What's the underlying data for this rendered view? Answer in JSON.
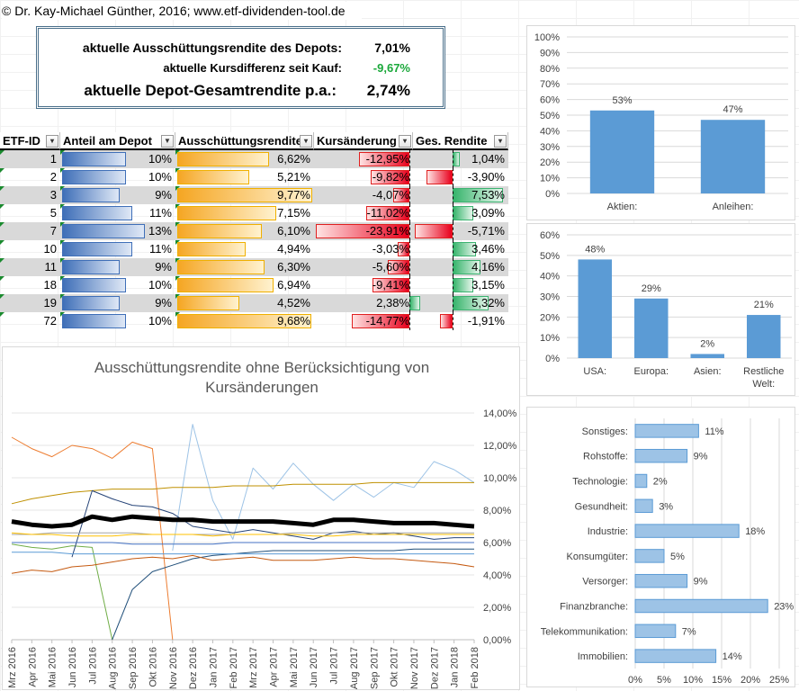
{
  "copyright": "© Dr. Kay-Michael Günther, 2016; www.etf-dividenden-tool.de",
  "summary": {
    "row1_label": "aktuelle Ausschüttungsrendite des Depots:",
    "row1_value": "7,01%",
    "row2_label": "aktuelle Kursdifferenz seit Kauf:",
    "row2_value": "-9,67%",
    "row3_label": "aktuelle Depot-Gesamtrendite p.a.:",
    "row3_value": "2,74%",
    "negative_color": "#1aa83a"
  },
  "table": {
    "headers": [
      "ETF-ID",
      "Anteil am Depot",
      "Ausschüttungsrendite",
      "Kursänderung",
      "Ges. Rendite"
    ],
    "rows": [
      {
        "id": "1",
        "anteil": "10%",
        "anteil_v": 10,
        "aus": "6,62%",
        "aus_v": 6.62,
        "kurs": "-12,95%",
        "kurs_v": -12.95,
        "ges": "1,04%",
        "ges_v": 1.04
      },
      {
        "id": "2",
        "anteil": "10%",
        "anteil_v": 10,
        "aus": "5,21%",
        "aus_v": 5.21,
        "kurs": "-9,82%",
        "kurs_v": -9.82,
        "ges": "-3,90%",
        "ges_v": -3.9
      },
      {
        "id": "3",
        "anteil": "9%",
        "anteil_v": 9,
        "aus": "9,77%",
        "aus_v": 9.77,
        "kurs": "-4,07%",
        "kurs_v": -4.07,
        "ges": "7,53%",
        "ges_v": 7.53
      },
      {
        "id": "5",
        "anteil": "11%",
        "anteil_v": 11,
        "aus": "7,15%",
        "aus_v": 7.15,
        "kurs": "-11,02%",
        "kurs_v": -11.02,
        "ges": "3,09%",
        "ges_v": 3.09
      },
      {
        "id": "7",
        "anteil": "13%",
        "anteil_v": 13,
        "aus": "6,10%",
        "aus_v": 6.1,
        "kurs": "-23,91%",
        "kurs_v": -23.91,
        "ges": "-5,71%",
        "ges_v": -5.71
      },
      {
        "id": "10",
        "anteil": "11%",
        "anteil_v": 11,
        "aus": "4,94%",
        "aus_v": 4.94,
        "kurs": "-3,03%",
        "kurs_v": -3.03,
        "ges": "3,46%",
        "ges_v": 3.46
      },
      {
        "id": "11",
        "anteil": "9%",
        "anteil_v": 9,
        "aus": "6,30%",
        "aus_v": 6.3,
        "kurs": "-5,60%",
        "kurs_v": -5.6,
        "ges": "4,16%",
        "ges_v": 4.16
      },
      {
        "id": "18",
        "anteil": "10%",
        "anteil_v": 10,
        "aus": "6,94%",
        "aus_v": 6.94,
        "kurs": "-9,41%",
        "kurs_v": -9.41,
        "ges": "3,15%",
        "ges_v": 3.15
      },
      {
        "id": "19",
        "anteil": "9%",
        "anteil_v": 9,
        "aus": "4,52%",
        "aus_v": 4.52,
        "kurs": "2,38%",
        "kurs_v": 2.38,
        "ges": "5,32%",
        "ges_v": 5.32
      },
      {
        "id": "72",
        "anteil": "10%",
        "anteil_v": 10,
        "aus": "9,68%",
        "aus_v": 9.68,
        "kurs": "-14,77%",
        "kurs_v": -14.77,
        "ges": "-1,91%",
        "ges_v": -1.91
      }
    ]
  },
  "chart_data": [
    {
      "type": "bar",
      "categories": [
        "Aktien:",
        "Anleihen:"
      ],
      "values": [
        53,
        47
      ],
      "labels": [
        "53%",
        "47%"
      ],
      "yticks": [
        "0%",
        "10%",
        "20%",
        "30%",
        "40%",
        "50%",
        "60%",
        "70%",
        "80%",
        "90%",
        "100%"
      ],
      "ylim": [
        0,
        100
      ],
      "color": "#5b9bd5"
    },
    {
      "type": "bar",
      "categories": [
        "USA:",
        "Europa:",
        "Asien:",
        "Restliche Welt:"
      ],
      "values": [
        48,
        29,
        2,
        21
      ],
      "labels": [
        "48%",
        "29%",
        "2%",
        "21%"
      ],
      "yticks": [
        "0%",
        "10%",
        "20%",
        "30%",
        "40%",
        "50%",
        "60%"
      ],
      "ylim": [
        0,
        60
      ],
      "color": "#5b9bd5"
    },
    {
      "type": "bar",
      "orientation": "horizontal",
      "categories": [
        "Sonstiges:",
        "Rohstoffe:",
        "Technologie:",
        "Gesundheit:",
        "Industrie:",
        "Konsumgüter:",
        "Versorger:",
        "Finanzbranche:",
        "Telekommunikation:",
        "Immobilien:"
      ],
      "values": [
        11,
        9,
        2,
        3,
        18,
        5,
        9,
        23,
        7,
        14
      ],
      "labels": [
        "11%",
        "9%",
        "2%",
        "3%",
        "18%",
        "5%",
        "9%",
        "23%",
        "7%",
        "14%"
      ],
      "xticks": [
        "0%",
        "5%",
        "10%",
        "15%",
        "20%",
        "25%"
      ],
      "xlim": [
        0,
        25
      ],
      "color": "#9dc3e6"
    },
    {
      "type": "line",
      "title": "Ausschüttungsrendite ohne Berücksichtigung von Kursänderungen",
      "x": [
        "Mrz 2016",
        "Apr 2016",
        "Mai 2016",
        "Jun 2016",
        "Jul 2016",
        "Aug 2016",
        "Sep 2016",
        "Okt 2016",
        "Nov 2016",
        "Dez 2016",
        "Jan 2017",
        "Feb 2017",
        "Mrz 2017",
        "Apr 2017",
        "Mai 2017",
        "Jun 2017",
        "Jul 2017",
        "Aug 2017",
        "Sep 2017",
        "Okt 2017",
        "Nov 2017",
        "Dez 2017",
        "Jan 2018",
        "Feb 2018"
      ],
      "yticks": [
        "0,00%",
        "2,00%",
        "4,00%",
        "6,00%",
        "8,00%",
        "10,00%",
        "12,00%",
        "14,00%"
      ],
      "ylim": [
        0,
        14
      ],
      "series": [
        {
          "color": "#ed7d31",
          "width": 1,
          "values": [
            12.5,
            11.8,
            11.3,
            12.0,
            11.8,
            11.2,
            12.2,
            11.8,
            0,
            null,
            null,
            null,
            null,
            null,
            null,
            null,
            null,
            null,
            null,
            null,
            null,
            null,
            null,
            null
          ]
        },
        {
          "color": "#9dc3e6",
          "width": 1,
          "values": [
            null,
            null,
            null,
            null,
            null,
            null,
            null,
            null,
            5.5,
            13.3,
            8.6,
            6.2,
            10.6,
            9.3,
            10.9,
            9.6,
            8.6,
            9.6,
            8.8,
            9.7,
            9.4,
            11.0,
            10.5,
            9.7
          ]
        },
        {
          "color": "#bf9000",
          "width": 1,
          "values": [
            8.4,
            8.7,
            8.9,
            9.1,
            9.2,
            9.3,
            9.3,
            9.3,
            9.4,
            9.4,
            9.4,
            9.5,
            9.5,
            9.5,
            9.6,
            9.6,
            9.6,
            9.6,
            9.7,
            9.7,
            9.7,
            9.7,
            9.7,
            9.7
          ]
        },
        {
          "color": "#70ad47",
          "width": 1,
          "values": [
            5.9,
            5.7,
            5.6,
            5.8,
            5.7,
            0,
            null,
            null,
            null,
            null,
            null,
            null,
            null,
            null,
            null,
            null,
            null,
            null,
            null,
            null,
            null,
            null,
            null,
            null
          ]
        },
        {
          "color": "#264478",
          "width": 1,
          "values": [
            null,
            null,
            null,
            5.1,
            9.2,
            8.7,
            8.3,
            8.2,
            7.8,
            7.0,
            6.8,
            6.6,
            6.8,
            6.6,
            6.4,
            6.2,
            6.6,
            6.7,
            6.5,
            6.6,
            6.4,
            6.2,
            6.3,
            6.3
          ]
        },
        {
          "color": "#1f4e79",
          "width": 1,
          "values": [
            null,
            null,
            null,
            null,
            null,
            0,
            3.1,
            4.2,
            4.6,
            5.0,
            5.2,
            5.3,
            5.4,
            5.5,
            5.5,
            5.5,
            5.5,
            5.5,
            5.5,
            5.5,
            5.6,
            5.6,
            5.6,
            5.6
          ]
        },
        {
          "color": "#c55a11",
          "width": 1,
          "values": [
            4.1,
            4.3,
            4.2,
            4.5,
            4.6,
            4.8,
            5.0,
            5.1,
            5.0,
            5.2,
            4.9,
            5.0,
            5.1,
            4.9,
            4.9,
            4.9,
            5.0,
            5.1,
            5.0,
            5.0,
            4.9,
            4.8,
            4.7,
            4.5
          ]
        },
        {
          "color": "#a5a5a5",
          "width": 1,
          "values": [
            6.5,
            6.5,
            6.6,
            6.6,
            6.6,
            6.6,
            6.6,
            6.5,
            6.5,
            6.5,
            6.5,
            6.5,
            6.5,
            6.5,
            6.6,
            6.6,
            6.6,
            6.6,
            6.6,
            6.6,
            6.6,
            6.6,
            6.6,
            6.6
          ]
        },
        {
          "color": "#ffc000",
          "width": 1,
          "values": [
            6.6,
            6.5,
            6.5,
            6.4,
            6.4,
            6.4,
            6.5,
            6.5,
            6.5,
            6.5,
            6.4,
            6.5,
            6.5,
            6.5,
            6.5,
            6.4,
            6.4,
            6.5,
            6.5,
            6.5,
            6.5,
            6.5,
            6.5,
            6.5
          ]
        },
        {
          "color": "#4472c4",
          "width": 1,
          "values": [
            6.0,
            6.0,
            6.0,
            6.0,
            6.0,
            6.0,
            5.9,
            5.9,
            5.9,
            5.9,
            5.9,
            6.0,
            6.0,
            6.0,
            6.0,
            6.0,
            6.0,
            6.0,
            6.0,
            6.0,
            6.0,
            6.0,
            6.0,
            6.0
          ]
        },
        {
          "color": "#5b9bd5",
          "width": 1,
          "values": [
            5.4,
            5.4,
            5.4,
            5.3,
            5.3,
            5.3,
            5.3,
            5.3,
            5.3,
            5.3,
            5.3,
            5.3,
            5.3,
            5.3,
            5.3,
            5.3,
            5.3,
            5.3,
            5.3,
            5.3,
            5.3,
            5.3,
            5.3,
            5.3
          ]
        },
        {
          "color": "#000000",
          "width": 5,
          "values": [
            7.3,
            7.1,
            7.0,
            7.1,
            7.6,
            7.4,
            7.6,
            7.5,
            7.4,
            7.4,
            7.3,
            7.3,
            7.3,
            7.3,
            7.2,
            7.1,
            7.4,
            7.4,
            7.3,
            7.2,
            7.2,
            7.2,
            7.1,
            7.0
          ]
        }
      ]
    }
  ]
}
